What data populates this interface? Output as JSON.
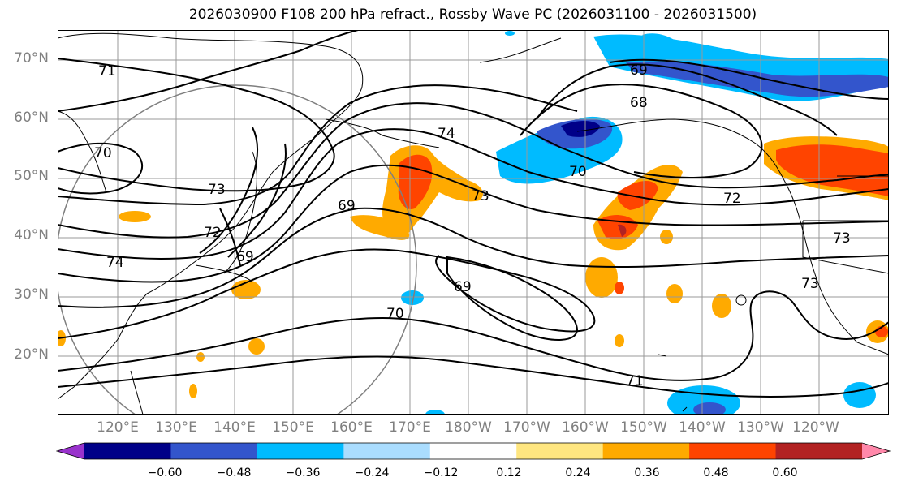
{
  "title": "2026030900 F108 200 hPa refract., Rossby Wave PC (2026031100 - 2026031500)",
  "lat_labels": [
    "70°N",
    "60°N",
    "50°N",
    "40°N",
    "30°N",
    "20°N"
  ],
  "lon_labels": [
    "120°E",
    "130°E",
    "140°E",
    "150°E",
    "160°E",
    "170°E",
    "180°W",
    "170°W",
    "160°W",
    "150°W",
    "140°W",
    "130°W",
    "120°W"
  ],
  "contour_labels": [
    "71",
    "70",
    "73",
    "72",
    "74",
    "69",
    "74",
    "69",
    "73",
    "70",
    "69",
    "68",
    "72",
    "73",
    "73",
    "71",
    "70",
    "69"
  ],
  "colorbar": {
    "colors": [
      "#9933cc",
      "#000088",
      "#3355cc",
      "#00bbff",
      "#aaddff",
      "#ffffff",
      "#ffe680",
      "#ffaa00",
      "#ff4400",
      "#b22222",
      "#ff88aa"
    ],
    "ticks": [
      "−0.60",
      "−0.48",
      "−0.36",
      "−0.24",
      "−0.12",
      "0.12",
      "0.24",
      "0.36",
      "0.48",
      "0.60"
    ]
  }
}
